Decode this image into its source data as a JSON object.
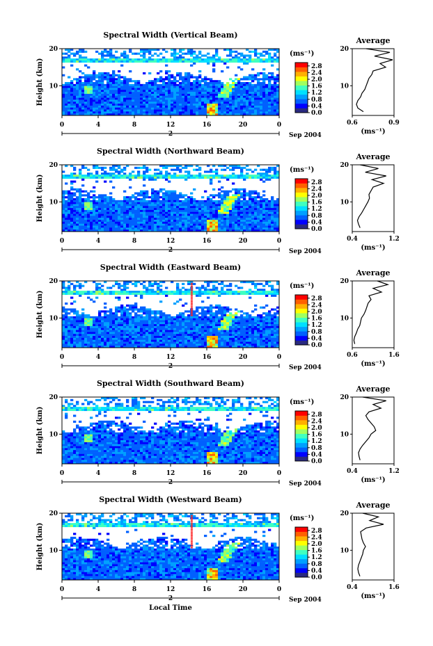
{
  "figure": {
    "xlabel": "Local Time",
    "ylabel": "Height (km)",
    "date_label": "Sep 2004",
    "date_marker": "2",
    "unit": "(ms⁻¹)",
    "avg_title": "Average",
    "avg_xlabel": "(ms⁻¹)",
    "colormap": [
      "#2a2a80",
      "#0000ff",
      "#0060ff",
      "#00a0ff",
      "#00e0ff",
      "#40ffc0",
      "#a0ff60",
      "#ffff00",
      "#ffb000",
      "#ff6000",
      "#ff0000"
    ]
  },
  "chart_data": [
    {
      "type": "heatmap",
      "title": "Spectral Width (Vertical Beam)",
      "xlabel": "Local Time",
      "ylabel": "Height (km)",
      "x_ticks": [
        "0",
        "4",
        "8",
        "12",
        "16",
        "20",
        "0"
      ],
      "xlim": [
        0,
        24
      ],
      "y_ticks": [
        "20",
        "10"
      ],
      "ylim": [
        2,
        20
      ],
      "colorbar": {
        "label": "(ms⁻¹)",
        "ticks": [
          "2.8",
          "2.4",
          "2.0",
          "1.6",
          "1.2",
          "0.8",
          "0.4",
          "0.0"
        ],
        "range": [
          0,
          3.0
        ]
      },
      "tropopause_km": 17,
      "average_profile": {
        "title": "Average",
        "xlabel": "(ms⁻¹)",
        "x_ticks": [
          "0.6",
          "0.9"
        ],
        "xlim": [
          0.6,
          0.9
        ],
        "height_km": [
          3,
          4,
          5,
          6,
          7,
          8,
          9,
          10,
          11,
          12,
          13,
          14,
          15,
          16,
          17,
          18,
          19,
          20
        ],
        "width": [
          0.68,
          0.64,
          0.63,
          0.64,
          0.66,
          0.67,
          0.69,
          0.7,
          0.71,
          0.72,
          0.74,
          0.75,
          0.84,
          0.8,
          0.89,
          0.76,
          0.87,
          0.7
        ]
      }
    },
    {
      "type": "heatmap",
      "title": "Spectral Width (Northward Beam)",
      "xlabel": "Local Time",
      "ylabel": "Height (km)",
      "x_ticks": [
        "0",
        "4",
        "8",
        "12",
        "16",
        "20",
        "0"
      ],
      "xlim": [
        0,
        24
      ],
      "y_ticks": [
        "20",
        "10"
      ],
      "ylim": [
        2,
        20
      ],
      "colorbar": {
        "label": "(ms⁻¹)",
        "ticks": [
          "2.8",
          "2.4",
          "2.0",
          "1.6",
          "1.2",
          "0.8",
          "0.4",
          "0.0"
        ],
        "range": [
          0,
          3.0
        ]
      },
      "tropopause_km": 17,
      "average_profile": {
        "title": "Average",
        "xlabel": "(ms⁻¹)",
        "x_ticks": [
          "0.4",
          "1.2"
        ],
        "xlim": [
          0.4,
          1.2
        ],
        "height_km": [
          3,
          4,
          5,
          6,
          7,
          8,
          9,
          10,
          11,
          12,
          13,
          14,
          15,
          16,
          17,
          18,
          19,
          20
        ],
        "width": [
          0.55,
          0.52,
          0.5,
          0.53,
          0.58,
          0.62,
          0.66,
          0.7,
          0.73,
          0.72,
          0.76,
          0.8,
          1.0,
          0.78,
          1.05,
          0.65,
          0.9,
          0.55
        ]
      }
    },
    {
      "type": "heatmap",
      "title": "Spectral Width (Eastward Beam)",
      "xlabel": "Local Time",
      "ylabel": "Height (km)",
      "x_ticks": [
        "0",
        "4",
        "8",
        "12",
        "16",
        "20",
        "0"
      ],
      "xlim": [
        0,
        24
      ],
      "y_ticks": [
        "20",
        "10"
      ],
      "ylim": [
        2,
        20
      ],
      "colorbar": {
        "label": "(ms⁻¹)",
        "ticks": [
          "2.8",
          "2.4",
          "2.0",
          "1.6",
          "1.2",
          "0.8",
          "0.4",
          "0.0"
        ],
        "range": [
          0,
          3.0
        ]
      },
      "tropopause_km": 17,
      "average_profile": {
        "title": "Average",
        "xlabel": "(ms⁻¹)",
        "x_ticks": [
          "0.6",
          "1.6"
        ],
        "xlim": [
          0.6,
          1.6
        ],
        "height_km": [
          3,
          4,
          5,
          6,
          7,
          8,
          9,
          10,
          11,
          12,
          13,
          14,
          15,
          16,
          17,
          18,
          19,
          20
        ],
        "width": [
          0.66,
          0.64,
          0.66,
          0.7,
          0.73,
          0.78,
          0.8,
          0.82,
          0.88,
          0.92,
          0.95,
          0.98,
          1.05,
          1.0,
          1.3,
          1.1,
          1.45,
          1.2
        ]
      }
    },
    {
      "type": "heatmap",
      "title": "Spectral Width (Southward Beam)",
      "xlabel": "Local Time",
      "ylabel": "Height (km)",
      "x_ticks": [
        "0",
        "4",
        "8",
        "12",
        "16",
        "20",
        "0"
      ],
      "xlim": [
        0,
        24
      ],
      "y_ticks": [
        "20",
        "10"
      ],
      "ylim": [
        2,
        20
      ],
      "colorbar": {
        "label": "(ms⁻¹)",
        "ticks": [
          "2.8",
          "2.4",
          "2.0",
          "1.6",
          "1.2",
          "0.8",
          "0.4",
          "0.0"
        ],
        "range": [
          0,
          3.0
        ]
      },
      "tropopause_km": 17,
      "average_profile": {
        "title": "Average",
        "xlabel": "(ms⁻¹)",
        "x_ticks": [
          "0.4",
          "1.2"
        ],
        "xlim": [
          0.4,
          1.2
        ],
        "height_km": [
          3,
          4,
          5,
          6,
          7,
          8,
          9,
          10,
          11,
          12,
          13,
          14,
          15,
          16,
          17,
          18,
          19,
          20
        ],
        "width": [
          0.55,
          0.53,
          0.52,
          0.55,
          0.6,
          0.66,
          0.72,
          0.76,
          0.85,
          0.82,
          0.76,
          0.7,
          0.66,
          0.72,
          0.95,
          0.8,
          1.05,
          0.6
        ]
      }
    },
    {
      "type": "heatmap",
      "title": "Spectral Width (Westward Beam)",
      "xlabel": "Local Time",
      "ylabel": "Height (km)",
      "x_ticks": [
        "0",
        "4",
        "8",
        "12",
        "16",
        "20",
        "0"
      ],
      "xlim": [
        0,
        24
      ],
      "y_ticks": [
        "20",
        "10"
      ],
      "ylim": [
        2,
        20
      ],
      "colorbar": {
        "label": "(ms⁻¹)",
        "ticks": [
          "2.8",
          "2.4",
          "2.0",
          "1.6",
          "1.2",
          "0.8",
          "0.4",
          "0.0"
        ],
        "range": [
          0,
          3.0
        ]
      },
      "tropopause_km": 17,
      "average_profile": {
        "title": "Average",
        "xlabel": "(ms⁻¹)",
        "x_ticks": [
          "0.4",
          "1.6"
        ],
        "xlim": [
          0.4,
          1.6
        ],
        "height_km": [
          3,
          4,
          5,
          6,
          7,
          8,
          9,
          10,
          11,
          12,
          13,
          14,
          15,
          16,
          17,
          18,
          19,
          20
        ],
        "width": [
          0.62,
          0.58,
          0.56,
          0.58,
          0.62,
          0.66,
          0.7,
          0.72,
          0.78,
          0.72,
          0.68,
          0.66,
          0.64,
          0.8,
          1.3,
          0.9,
          1.15,
          0.7
        ]
      }
    }
  ]
}
